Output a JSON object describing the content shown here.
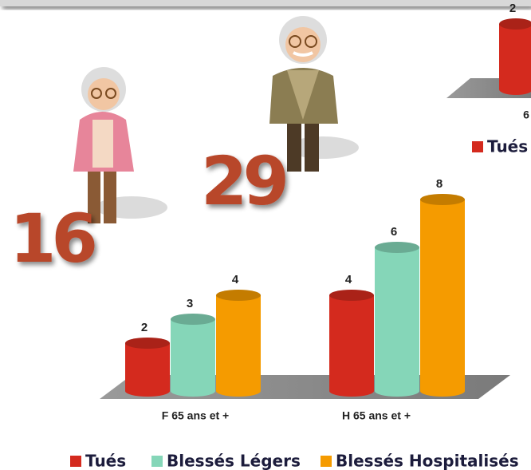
{
  "chart_data": [
    {
      "type": "bar",
      "categories": [
        "6"
      ],
      "series": [
        {
          "name": "Tués",
          "color": "#d42a1e",
          "values": [
            2
          ]
        }
      ]
    },
    {
      "type": "bar",
      "categories": [
        "F 65 ans et +",
        "H 65 ans et +"
      ],
      "series": [
        {
          "name": "Tués",
          "color": "#d42a1e",
          "values": [
            2,
            4
          ]
        },
        {
          "name": "Blessés Légers",
          "color": "#85d6b8",
          "values": [
            3,
            6
          ]
        },
        {
          "name": "Blessés Hospitalisés",
          "color": "#f59b00",
          "values": [
            4,
            8
          ]
        }
      ],
      "annotations": [
        16,
        29
      ]
    }
  ]
}
